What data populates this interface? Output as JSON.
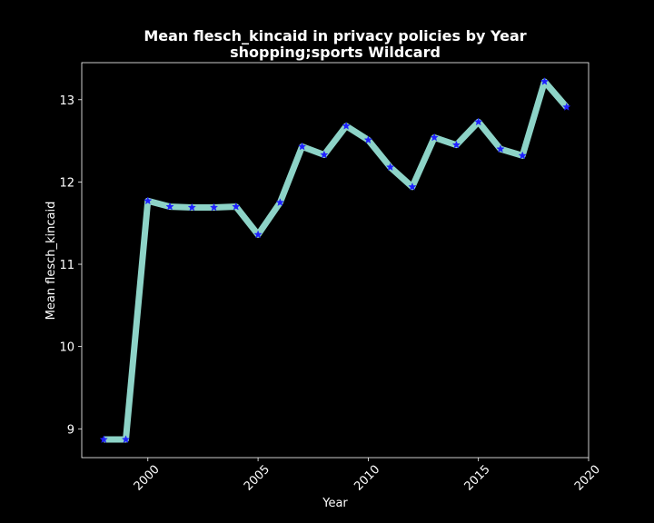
{
  "chart_data": {
    "type": "line",
    "title": "Mean flesch_kincaid in privacy policies by Year",
    "subtitle": "shopping;sports Wildcard",
    "xlabel": "Year",
    "ylabel": "Mean flesch_kincaid",
    "xlim": [
      1997.0,
      2020.0
    ],
    "ylim": [
      8.65,
      13.45
    ],
    "x_ticks": [
      2000,
      2005,
      2010,
      2015,
      2020
    ],
    "y_ticks": [
      9,
      10,
      11,
      12,
      13
    ],
    "grid": false,
    "legend": "none",
    "line_color": "#8dd3c7",
    "marker_color": "#1f1fff",
    "marker": "star",
    "series": [
      {
        "x": [
          1998,
          1999,
          2000,
          2001,
          2002,
          2003,
          2004,
          2005,
          2006,
          2007,
          2008,
          2009,
          2010,
          2011,
          2012,
          2013,
          2014,
          2015,
          2016,
          2017,
          2018,
          2019
        ],
        "values": [
          8.87,
          8.87,
          11.77,
          11.7,
          11.69,
          11.69,
          11.7,
          11.36,
          11.75,
          12.43,
          12.33,
          12.68,
          12.51,
          12.18,
          11.94,
          12.54,
          12.45,
          12.73,
          12.4,
          12.32,
          13.22,
          12.91
        ]
      }
    ]
  }
}
